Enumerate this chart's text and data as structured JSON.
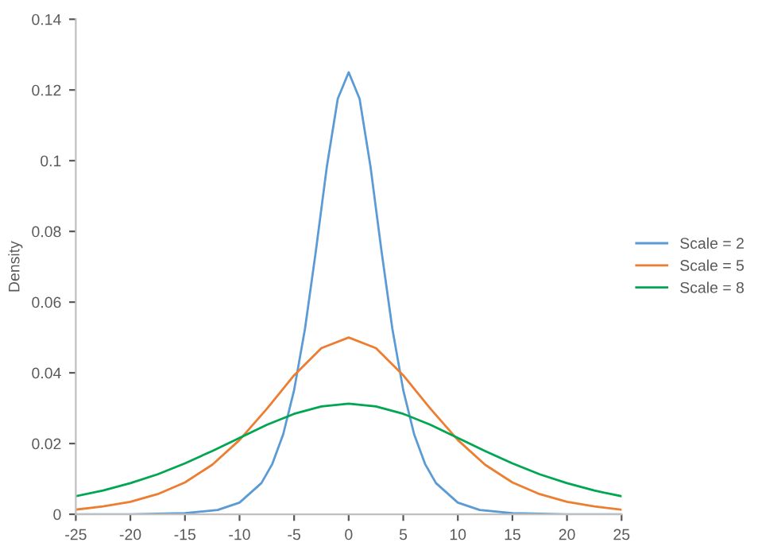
{
  "chart_data": {
    "type": "line",
    "ylabel": "Density",
    "xlim": [
      -25,
      25
    ],
    "xticks": [
      -25,
      -20,
      -15,
      -10,
      -5,
      0,
      5,
      10,
      15,
      20,
      25
    ],
    "ylim": [
      0,
      0.14
    ],
    "yticks": [
      {
        "value": 0,
        "label": "0"
      },
      0.02,
      0.04,
      0.06,
      0.08,
      {
        "value": 0.1,
        "label": "0.1"
      },
      0.12,
      0.14
    ],
    "grid": false,
    "legend": "right",
    "marker": "none",
    "line_style": "solid",
    "series": [
      {
        "name": "Scale = 2",
        "color": "#5b9bd5",
        "x": [
          -25,
          -20,
          -15,
          -12,
          -10,
          -8,
          -7,
          -6,
          -5,
          -4,
          -3,
          -2,
          -1,
          0,
          1,
          2,
          3,
          4,
          5,
          6,
          7,
          8,
          10,
          12,
          15,
          20,
          25
        ],
        "values": [
          0,
          0,
          0.0003,
          0.0012,
          0.0033,
          0.0088,
          0.0142,
          0.0226,
          0.0351,
          0.0525,
          0.0746,
          0.0983,
          0.1175,
          0.125,
          0.1175,
          0.0983,
          0.0746,
          0.0525,
          0.0351,
          0.0226,
          0.0142,
          0.0088,
          0.0033,
          0.0012,
          0.0003,
          0,
          0
        ]
      },
      {
        "name": "Scale = 5",
        "color": "#ed7d31",
        "x": [
          -25,
          -22.5,
          -20,
          -17.5,
          -15,
          -12.5,
          -10,
          -7.5,
          -5,
          -2.5,
          0,
          2.5,
          5,
          7.5,
          10,
          12.5,
          15,
          17.5,
          20,
          22.5,
          25
        ],
        "values": [
          0.0013,
          0.0022,
          0.0035,
          0.0057,
          0.009,
          0.014,
          0.021,
          0.0298,
          0.0393,
          0.047,
          0.05,
          0.047,
          0.0393,
          0.0298,
          0.021,
          0.014,
          0.009,
          0.0057,
          0.0035,
          0.0022,
          0.0013
        ]
      },
      {
        "name": "Scale = 8",
        "color": "#00a651",
        "x": [
          -25,
          -22.5,
          -20,
          -17.5,
          -15,
          -12.5,
          -10,
          -7.5,
          -5,
          -2.5,
          0,
          2.5,
          5,
          7.5,
          10,
          12.5,
          15,
          17.5,
          20,
          22.5,
          25
        ],
        "values": [
          0.0051,
          0.0067,
          0.0088,
          0.0113,
          0.0144,
          0.0179,
          0.0216,
          0.0253,
          0.0284,
          0.0305,
          0.0313,
          0.0305,
          0.0284,
          0.0253,
          0.0216,
          0.0179,
          0.0144,
          0.0113,
          0.0088,
          0.0067,
          0.0051
        ]
      }
    ]
  }
}
